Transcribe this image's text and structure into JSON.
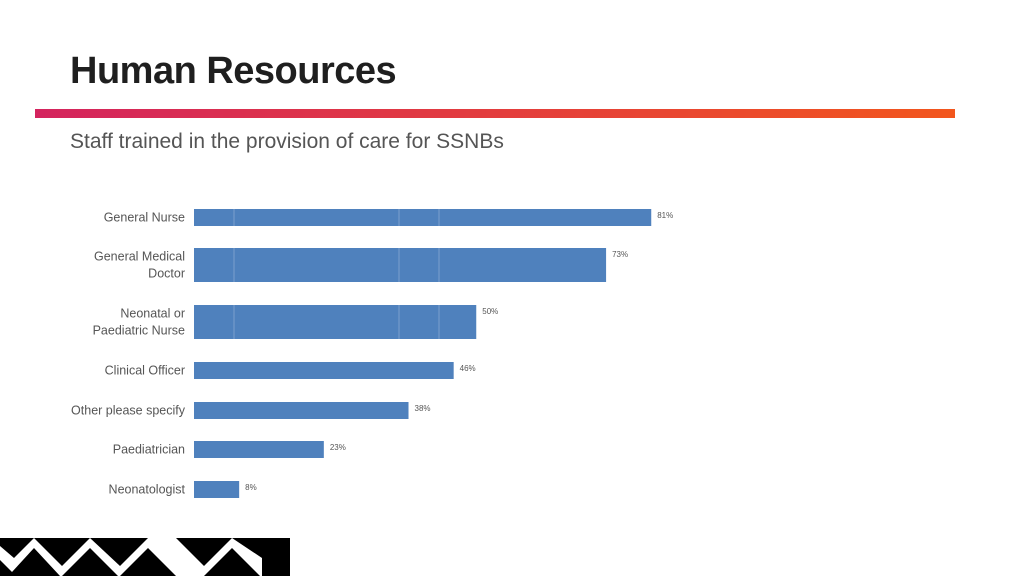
{
  "slide": {
    "title": "Human Resources",
    "subtitle": "Staff trained in the provision of care for SSNBs"
  },
  "colors": {
    "bar": "#4f81bd",
    "accent_start": "#d4245e",
    "accent_end": "#f2561d",
    "pattern": "#000000"
  },
  "chart_data": {
    "type": "bar",
    "orientation": "horizontal",
    "title": "",
    "xlabel": "",
    "ylabel": "",
    "categories": [
      [
        "General Nurse"
      ],
      [
        "General Medical",
        "Doctor"
      ],
      [
        "Neonatal or",
        "Paediatric Nurse"
      ],
      [
        "Clinical Officer"
      ],
      [
        "Other please specify"
      ],
      [
        "Paediatrician"
      ],
      [
        "Neonatologist"
      ]
    ],
    "values": [
      81,
      73,
      50,
      46,
      38,
      23,
      8
    ],
    "value_labels": [
      "81%",
      "73%",
      "50%",
      "46%",
      "38%",
      "23%",
      "8%"
    ],
    "xlim": [
      0,
      100
    ],
    "grid": false,
    "legend": "none"
  }
}
